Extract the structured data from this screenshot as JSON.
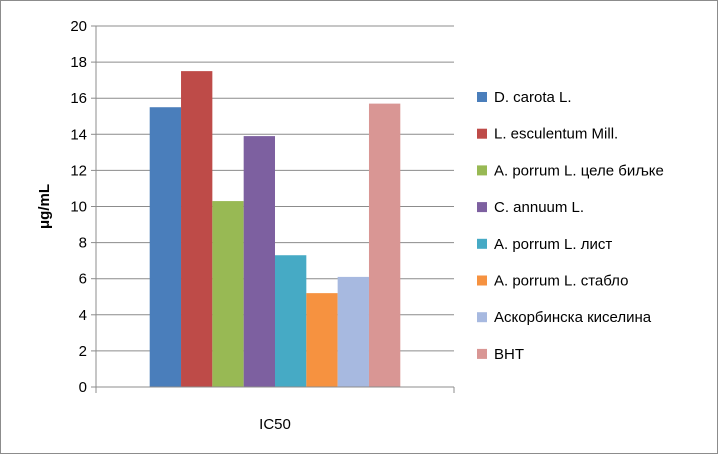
{
  "chart_data": {
    "type": "bar",
    "title": "",
    "xlabel": "",
    "ylabel": "μg/mL",
    "categories": [
      "IC50"
    ],
    "ylim": [
      0,
      20
    ],
    "yticks": [
      0,
      2,
      4,
      6,
      8,
      10,
      12,
      14,
      16,
      18,
      20
    ],
    "grid": true,
    "legend_position": "right",
    "series": [
      {
        "name": "D. carota L.",
        "values": [
          15.5
        ],
        "color": "#4a7ebb"
      },
      {
        "name": "L. esculentum Mill.",
        "values": [
          17.5
        ],
        "color": "#be4b48"
      },
      {
        "name": "A. porrum L. целе биљке",
        "values": [
          10.3
        ],
        "color": "#98b954"
      },
      {
        "name": "C. annuum L.",
        "values": [
          13.9
        ],
        "color": "#7d60a0"
      },
      {
        "name": "A. porrum L. лист",
        "values": [
          7.3
        ],
        "color": "#46aac5"
      },
      {
        "name": "A. porrum L. стабло",
        "values": [
          5.2
        ],
        "color": "#f69240"
      },
      {
        "name": "Аскорбинска киселина",
        "values": [
          6.1
        ],
        "color": "#a7b9e0"
      },
      {
        "name": "BHT",
        "values": [
          15.7
        ],
        "color": "#d99694"
      }
    ]
  }
}
